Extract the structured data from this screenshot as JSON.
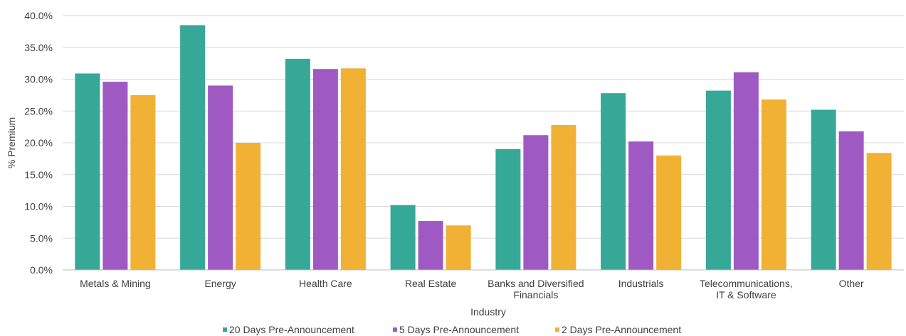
{
  "chart_data": {
    "type": "bar",
    "title": "",
    "xlabel": "Industry",
    "ylabel": "% Premium",
    "ylim": [
      0,
      40
    ],
    "yticks": [
      "0.0%",
      "5.0%",
      "10.0%",
      "15.0%",
      "20.0%",
      "25.0%",
      "30.0%",
      "35.0%",
      "40.0%"
    ],
    "grid": true,
    "legend_position": "bottom",
    "categories": [
      [
        "Metals & Mining"
      ],
      [
        "Energy"
      ],
      [
        "Health Care"
      ],
      [
        "Real Estate"
      ],
      [
        "Banks and Diversified",
        "Financials"
      ],
      [
        "Industrials"
      ],
      [
        "Telecommunications,",
        "IT & Software"
      ],
      [
        "Other"
      ]
    ],
    "series": [
      {
        "name": "20 Days Pre-Announcement",
        "color": "#35a898",
        "values": [
          30.9,
          38.5,
          33.2,
          10.2,
          19.0,
          27.8,
          28.2,
          25.2
        ]
      },
      {
        "name": "5 Days Pre-Announcement",
        "color": "#9e5ac2",
        "values": [
          29.6,
          29.0,
          31.6,
          7.7,
          21.2,
          20.2,
          31.1,
          21.8
        ]
      },
      {
        "name": "2 Days Pre-Announcement",
        "color": "#f0b134",
        "values": [
          27.5,
          20.0,
          31.7,
          7.0,
          22.8,
          18.0,
          26.8,
          18.4
        ]
      }
    ]
  }
}
